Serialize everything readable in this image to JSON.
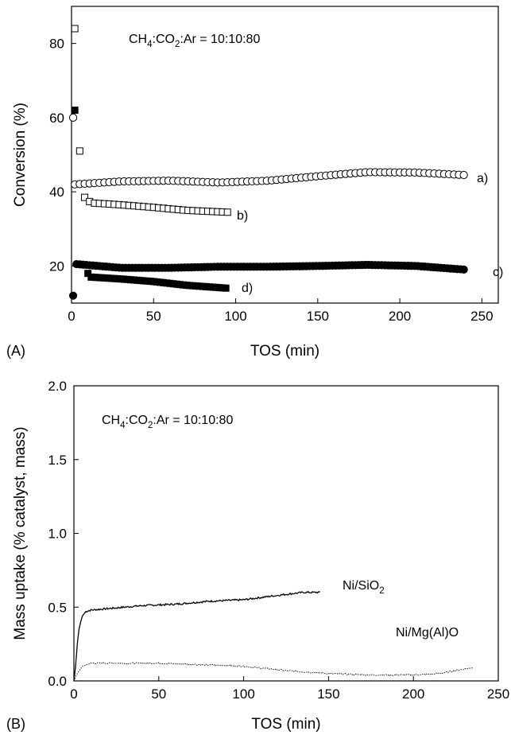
{
  "chart_data": [
    {
      "type": "scatter",
      "panel_label": "(A)",
      "xlabel": "TOS (min)",
      "ylabel": "Conversion (%)",
      "xlim": [
        0,
        260
      ],
      "ylim": [
        10,
        90
      ],
      "xticks": [
        0,
        50,
        100,
        150,
        200,
        250
      ],
      "yticks": [
        20,
        40,
        60,
        80
      ],
      "annotation": {
        "parts": [
          {
            "t": "CH",
            "sub": false
          },
          {
            "t": "4",
            "sub": true
          },
          {
            "t": ":CO",
            "sub": false
          },
          {
            "t": "2",
            "sub": true
          },
          {
            "t": ":Ar = 10:10:80",
            "sub": false
          }
        ]
      },
      "series": [
        {
          "name": "a)",
          "marker": "open-circle",
          "points": [
            [
              1,
              60
            ],
            [
              2,
              42
            ],
            [
              30,
              42.8
            ],
            [
              60,
              43
            ],
            [
              90,
              42.5
            ],
            [
              120,
              43
            ],
            [
              150,
              44.2
            ],
            [
              180,
              45.3
            ],
            [
              210,
              45.2
            ],
            [
              240,
              44.5
            ]
          ]
        },
        {
          "name": "b)",
          "marker": "open-square",
          "points": [
            [
              2,
              84
            ],
            [
              5,
              51
            ],
            [
              8,
              38.5
            ],
            [
              12,
              37
            ],
            [
              30,
              36.5
            ],
            [
              50,
              35.8
            ],
            [
              70,
              35
            ],
            [
              95,
              34.5
            ]
          ]
        },
        {
          "name": "c)",
          "marker": "filled-circle",
          "points": [
            [
              1,
              12
            ],
            [
              3,
              20.5
            ],
            [
              30,
              19.5
            ],
            [
              60,
              19.5
            ],
            [
              90,
              19.8
            ],
            [
              120,
              19.8
            ],
            [
              150,
              20
            ],
            [
              180,
              20.3
            ],
            [
              210,
              20
            ],
            [
              240,
              19
            ]
          ]
        },
        {
          "name": "d)",
          "marker": "filled-square",
          "points": [
            [
              2,
              62
            ],
            [
              10,
              18
            ],
            [
              12,
              17
            ],
            [
              30,
              16.5
            ],
            [
              50,
              15.8
            ],
            [
              70,
              14.8
            ],
            [
              95,
              14
            ]
          ]
        }
      ]
    },
    {
      "type": "line",
      "panel_label": "(B)",
      "xlabel": "TOS (min)",
      "ylabel": "Mass uptake (% catalyst, mass)",
      "xlim": [
        0,
        250
      ],
      "ylim": [
        0,
        2.0
      ],
      "xticks": [
        0,
        50,
        100,
        150,
        200,
        250
      ],
      "yticks": [
        "0.0",
        "0.5",
        "1.0",
        "1.5",
        "2.0"
      ],
      "annotation": {
        "parts": [
          {
            "t": "CH",
            "sub": false
          },
          {
            "t": "4",
            "sub": true
          },
          {
            "t": ":CO",
            "sub": false
          },
          {
            "t": "2",
            "sub": true
          },
          {
            "t": ":Ar = 10:10:80",
            "sub": false
          }
        ]
      },
      "series": [
        {
          "name_parts": [
            {
              "t": "Ni/SiO",
              "sub": false
            },
            {
              "t": "2",
              "sub": true
            }
          ],
          "style": "solid",
          "points": [
            [
              0,
              0
            ],
            [
              1,
              0.1
            ],
            [
              2,
              0.25
            ],
            [
              3,
              0.35
            ],
            [
              4,
              0.4
            ],
            [
              5,
              0.44
            ],
            [
              7,
              0.47
            ],
            [
              10,
              0.48
            ],
            [
              20,
              0.49
            ],
            [
              40,
              0.51
            ],
            [
              60,
              0.52
            ],
            [
              80,
              0.54
            ],
            [
              100,
              0.55
            ],
            [
              120,
              0.58
            ],
            [
              135,
              0.6
            ],
            [
              145,
              0.6
            ]
          ]
        },
        {
          "name_parts": [
            {
              "t": "Ni/Mg(Al)O",
              "sub": false
            }
          ],
          "style": "dotted",
          "points": [
            [
              0,
              0
            ],
            [
              2,
              0.05
            ],
            [
              5,
              0.1
            ],
            [
              10,
              0.12
            ],
            [
              25,
              0.12
            ],
            [
              50,
              0.12
            ],
            [
              75,
              0.11
            ],
            [
              100,
              0.1
            ],
            [
              125,
              0.07
            ],
            [
              150,
              0.05
            ],
            [
              175,
              0.04
            ],
            [
              200,
              0.04
            ],
            [
              215,
              0.05
            ],
            [
              225,
              0.07
            ],
            [
              235,
              0.09
            ]
          ]
        }
      ]
    }
  ]
}
